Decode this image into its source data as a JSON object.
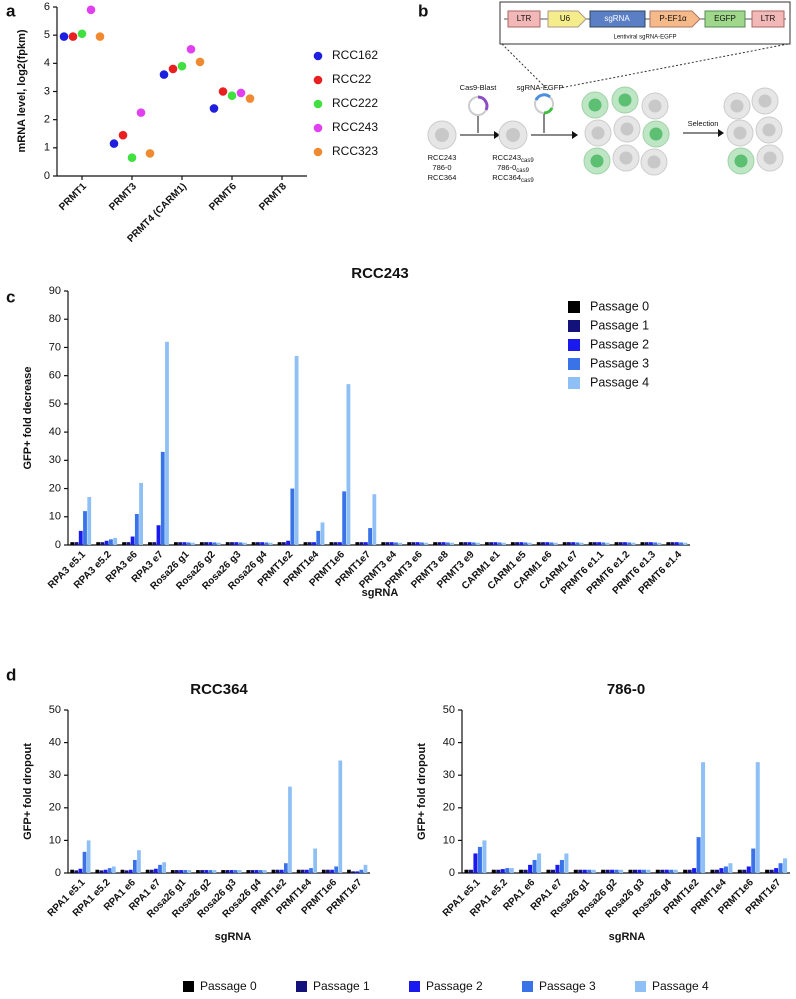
{
  "panel_labels": [
    "a",
    "b",
    "c",
    "d"
  ],
  "diagram": {
    "vector": {
      "elements": [
        "LTR",
        "U6",
        "sgRNA",
        "P-EF1α",
        "EGFP",
        "LTR"
      ],
      "caption": "Lentiviral sgRNA-EGFP"
    },
    "steps": {
      "cas9": "Cas9-Blast",
      "sgrna": "sgRNA-EGFP",
      "selection": "Selection"
    },
    "parental": [
      "RCC243",
      "786-0",
      "RCC364"
    ],
    "cas9_lines": [
      {
        "text": "RCC243",
        "sub": "cas9"
      },
      {
        "text": "786-0",
        "sub": "cas9"
      },
      {
        "text": "RCC364",
        "sub": "cas9"
      }
    ]
  },
  "chart_data": [
    {
      "type": "scatter",
      "ylabel": "mRNA level, log2(fpkm)",
      "categories": [
        "PRMT1",
        "PRMT3",
        "PRMT4 (CARM1)",
        "PRMT6",
        "PRMT8"
      ],
      "series": [
        {
          "name": "RCC162",
          "color": "#1f1fe0",
          "values": [
            4.95,
            1.15,
            3.6,
            2.4,
            null
          ]
        },
        {
          "name": "RCC22",
          "color": "#e82020",
          "values": [
            4.95,
            1.45,
            3.8,
            3.0,
            null
          ]
        },
        {
          "name": "RCC222",
          "color": "#3fe03f",
          "values": [
            5.05,
            0.65,
            3.9,
            2.85,
            null
          ]
        },
        {
          "name": "RCC243",
          "color": "#e040f0",
          "values": [
            5.9,
            2.25,
            4.5,
            2.95,
            null
          ]
        },
        {
          "name": "RCC323",
          "color": "#f08a30",
          "values": [
            4.95,
            0.8,
            4.05,
            2.75,
            null
          ]
        }
      ],
      "ylim": [
        0,
        6
      ],
      "yticks": [
        0,
        1,
        2,
        3,
        4,
        5,
        6
      ],
      "legend": "right"
    },
    {
      "type": "bar",
      "title": "RCC243",
      "xlabel": "sgRNA",
      "ylabel": "GFP+ fold decrease",
      "categories": [
        "RPA3 e5.1",
        "RPA3 e5.2",
        "RPA3 e6",
        "RPA3 e7",
        "Rosa26 g1",
        "Rosa26 g2",
        "Rosa26 g3",
        "Rosa26 g4",
        "PRMT1e2",
        "PRMT1e4",
        "PRMT1e6",
        "PRMT1e7",
        "PRMT3 e4",
        "PRMT3 e6",
        "PRMT3 e8",
        "PRMT3 e9",
        "CARM1 e1",
        "CARM1 e5",
        "CARM1 e6",
        "CARM1 e7",
        "PRMT6 e1.1",
        "PRMT6 e1.2",
        "PRMT6 e1.3",
        "PRMT6 e1.4"
      ],
      "series": [
        {
          "name": "Passage 0",
          "color": "#000000",
          "values": [
            1,
            1,
            1,
            1,
            1,
            1,
            1,
            1,
            1,
            1,
            1,
            1,
            1,
            1,
            1,
            1,
            1,
            1,
            1,
            1,
            1,
            1,
            1,
            1
          ]
        },
        {
          "name": "Passage 1",
          "color": "#12127a",
          "values": [
            1,
            1,
            1,
            1,
            1,
            1,
            1,
            1,
            1,
            1,
            1,
            1,
            1,
            1,
            1,
            1,
            1,
            1,
            1,
            1,
            1,
            1,
            1,
            1
          ]
        },
        {
          "name": "Passage 2",
          "color": "#1a1aee",
          "values": [
            5,
            1.5,
            3,
            7,
            1,
            1,
            1,
            1,
            1.5,
            1,
            1,
            1,
            1,
            1,
            1,
            1,
            1,
            1,
            1,
            1,
            1,
            1,
            1,
            1
          ]
        },
        {
          "name": "Passage 3",
          "color": "#3a72e8",
          "values": [
            12,
            2,
            11,
            33,
            0.9,
            0.9,
            0.9,
            0.9,
            20,
            5,
            19,
            6,
            0.9,
            0.9,
            0.9,
            0.9,
            0.9,
            0.9,
            0.9,
            0.9,
            0.9,
            0.9,
            0.9,
            0.9
          ]
        },
        {
          "name": "Passage 4",
          "color": "#8ec0f5",
          "values": [
            17,
            2.5,
            22,
            72,
            0.8,
            0.8,
            0.8,
            0.8,
            67,
            8,
            57,
            18,
            0.8,
            0.8,
            0.8,
            0.8,
            0.8,
            0.8,
            0.8,
            0.8,
            0.8,
            0.8,
            0.8,
            0.8
          ]
        }
      ],
      "ylim": [
        0,
        90
      ],
      "yticks": [
        0,
        10,
        20,
        30,
        40,
        50,
        60,
        70,
        80,
        90
      ],
      "legend": "upper right"
    },
    {
      "type": "bar",
      "xlabel": "sgRNA",
      "ylabel": "GFP+ fold dropout",
      "categories": [
        "RPA1 e5.1",
        "RPA1 e5.2",
        "RPA1 e6",
        "RPA1 e7",
        "Rosa26 g1",
        "Rosa26 g2",
        "Rosa26 g3",
        "Rosa26 g4",
        "PRMT1e2",
        "PRMT1e4",
        "PRMT1e6",
        "PRMT1e7"
      ],
      "series": [
        {
          "name": "Passage 0",
          "color": "#000000"
        },
        {
          "name": "Passage 1",
          "color": "#12127a"
        },
        {
          "name": "Passage 2",
          "color": "#1a1aee"
        },
        {
          "name": "Passage 3",
          "color": "#3a72e8"
        },
        {
          "name": "Passage 4",
          "color": "#8ec0f5"
        }
      ],
      "panels": [
        {
          "title": "RCC364",
          "ylim": [
            0,
            50
          ],
          "yticks": [
            0,
            10,
            20,
            30,
            40,
            50
          ],
          "values": [
            [
              1,
              1,
              1,
              1,
              0.9,
              0.9,
              0.9,
              0.9,
              1,
              1,
              1,
              1
            ],
            [
              0.8,
              0.8,
              0.8,
              1,
              0.9,
              0.9,
              0.9,
              0.9,
              1,
              1,
              1,
              0.5
            ],
            [
              1.3,
              1,
              1,
              1.3,
              0.9,
              0.9,
              0.9,
              0.9,
              1,
              1,
              1,
              0.5
            ],
            [
              6.5,
              1.5,
              4,
              2.5,
              0.9,
              0.9,
              0.9,
              0.9,
              3,
              1.5,
              2,
              1
            ],
            [
              10,
              2,
              7,
              3.3,
              0.9,
              0.9,
              0.9,
              0.9,
              26.5,
              7.5,
              34.5,
              2.5
            ]
          ]
        },
        {
          "title": "786-0",
          "ylim": [
            0,
            50
          ],
          "yticks": [
            0,
            10,
            20,
            30,
            40,
            50
          ],
          "values": [
            [
              1,
              1,
              1,
              1,
              1,
              1,
              1,
              1,
              1,
              1,
              1,
              1
            ],
            [
              1,
              1,
              1,
              1,
              1,
              1,
              1,
              1,
              1,
              1,
              1,
              1
            ],
            [
              6,
              1.2,
              2.5,
              2.5,
              1,
              1,
              1,
              1,
              1.5,
              1.5,
              2,
              1.5
            ],
            [
              8,
              1.5,
              4,
              4,
              1,
              1,
              1,
              1,
              11,
              2,
              7.5,
              3
            ],
            [
              10,
              1.5,
              6,
              6,
              1,
              1,
              1,
              1,
              34,
              3,
              34,
              4.5
            ]
          ]
        }
      ],
      "legend": "bottom"
    }
  ]
}
